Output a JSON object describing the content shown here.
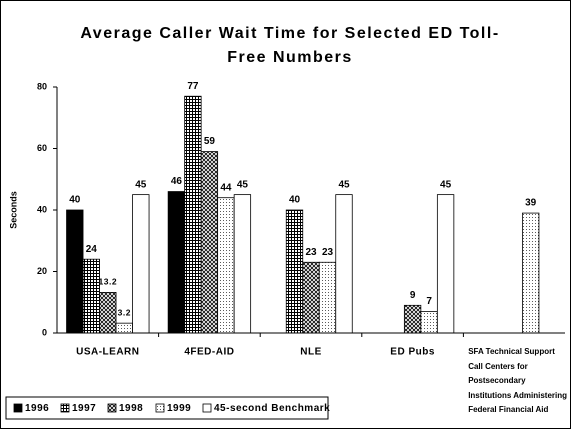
{
  "chart_data": {
    "type": "bar",
    "title": "Average Caller Wait Time for Selected ED Toll-Free Numbers",
    "y_label": "Seconds",
    "categories": [
      "USA-LEARN",
      "4FED-AID",
      "NLE",
      "ED Pubs",
      "SFA Technical Support Call Centers for Postsecondary Institutions Administering Federal Financial Aid"
    ],
    "series": [
      {
        "name": "1996",
        "color": "#000000",
        "pattern": "solid",
        "values": [
          40,
          46,
          null,
          null,
          null
        ]
      },
      {
        "name": "1997",
        "color": "#000000",
        "pattern": "grid",
        "values": [
          24,
          77,
          40,
          null,
          null
        ]
      },
      {
        "name": "1998",
        "color": "#000000",
        "pattern": "crosshatch",
        "values": [
          13.2,
          59,
          23,
          9,
          null
        ]
      },
      {
        "name": "1999",
        "color": "#000000",
        "pattern": "dots",
        "values": [
          3.2,
          44,
          23,
          7,
          39
        ]
      },
      {
        "name": "45-second Benchmark",
        "color": "#000000",
        "pattern": "none",
        "values": [
          45,
          45,
          45,
          45,
          null
        ]
      }
    ],
    "ylim": [
      0,
      80
    ],
    "yticks": [
      0,
      20,
      40,
      60,
      80
    ],
    "grid": false,
    "legend": "bottom"
  }
}
